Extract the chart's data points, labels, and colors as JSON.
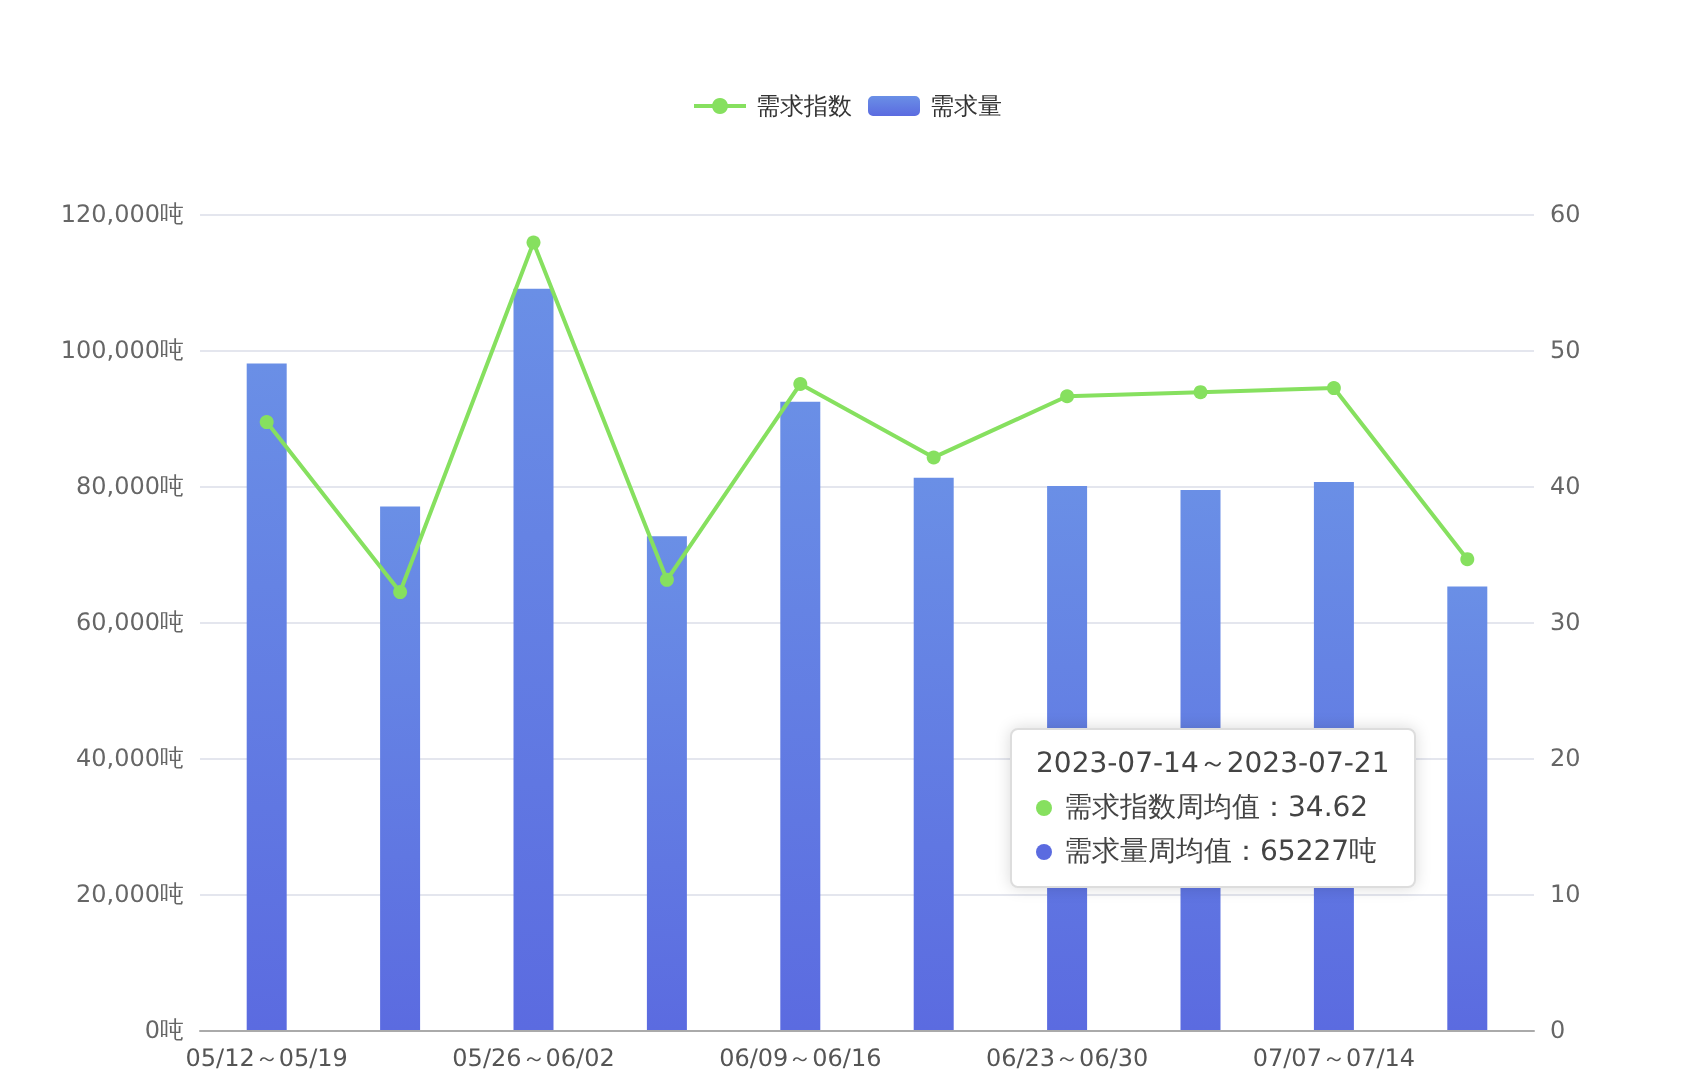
{
  "chart_data": {
    "type": "bar",
    "categories": [
      "05/12～05/19",
      null,
      "05/26～06/02",
      null,
      "06/09～06/16",
      null,
      "06/23～06/30",
      null,
      "07/07～07/14",
      null
    ],
    "series": [
      {
        "name": "需求指数",
        "type": "line",
        "axis": "y2",
        "color": "#86e05f",
        "values": [
          44.7,
          32.2,
          57.9,
          33.1,
          47.5,
          42.1,
          46.6,
          46.9,
          47.2,
          34.62
        ]
      },
      {
        "name": "需求量",
        "type": "bar",
        "color": "#6a8fe6",
        "values": [
          98000,
          77000,
          109000,
          72600,
          92400,
          81200,
          80000,
          79400,
          80600,
          65227
        ]
      }
    ],
    "ylim": [
      0,
      120000
    ],
    "yticks": [
      {
        "value": 0,
        "label": "0吨"
      },
      {
        "value": 20000,
        "label": "20,000吨"
      },
      {
        "value": 40000,
        "label": "40,000吨"
      },
      {
        "value": 60000,
        "label": "60,000吨"
      },
      {
        "value": 80000,
        "label": "80,000吨"
      },
      {
        "value": 100000,
        "label": "100,000吨"
      },
      {
        "value": 120000,
        "label": "120,000吨"
      }
    ],
    "y2lim": [
      0,
      60
    ],
    "y2ticks": [
      0,
      10,
      20,
      30,
      40,
      50,
      60
    ],
    "grid": "y",
    "legend": "top",
    "marker": "circle",
    "line_style": "solid",
    "annotations": [
      "2023-07-14～2023-07-21",
      "需求指数周均值：34.62",
      "需求量周均值：65227吨"
    ]
  }
}
